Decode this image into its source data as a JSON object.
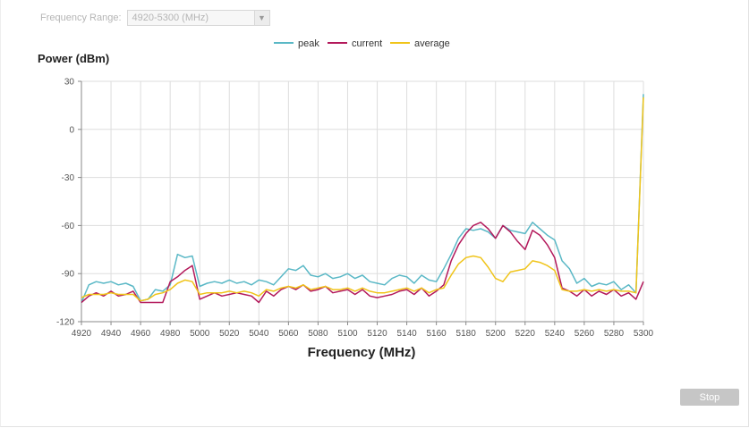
{
  "controls": {
    "range_label": "Frequency Range:",
    "range_value": "4920-5300 (MHz)",
    "stop_label": "Stop"
  },
  "colors": {
    "peak": "#5ab8c6",
    "current": "#b3195b",
    "average": "#f0c419",
    "grid": "#dddddd"
  },
  "chart_data": {
    "type": "line",
    "xlabel": "Frequency (MHz)",
    "ylabel": "Power (dBm)",
    "xlim": [
      4920,
      5300
    ],
    "ylim": [
      -120,
      30
    ],
    "x_ticks": [
      4920,
      4940,
      4960,
      4980,
      5000,
      5020,
      5040,
      5060,
      5080,
      5100,
      5120,
      5140,
      5160,
      5180,
      5200,
      5220,
      5240,
      5260,
      5280,
      5300
    ],
    "y_ticks": [
      30,
      0,
      -30,
      -60,
      -90,
      -120
    ],
    "grid": true,
    "legend_position": "top-center",
    "x": [
      4920,
      4925,
      4930,
      4935,
      4940,
      4945,
      4950,
      4955,
      4960,
      4965,
      4970,
      4975,
      4980,
      4985,
      4990,
      4995,
      5000,
      5005,
      5010,
      5015,
      5020,
      5025,
      5030,
      5035,
      5040,
      5045,
      5050,
      5055,
      5060,
      5065,
      5070,
      5075,
      5080,
      5085,
      5090,
      5095,
      5100,
      5105,
      5110,
      5115,
      5120,
      5125,
      5130,
      5135,
      5140,
      5145,
      5150,
      5155,
      5160,
      5165,
      5170,
      5175,
      5180,
      5185,
      5190,
      5195,
      5200,
      5205,
      5210,
      5215,
      5220,
      5225,
      5230,
      5235,
      5240,
      5245,
      5250,
      5255,
      5260,
      5265,
      5270,
      5275,
      5280,
      5285,
      5290,
      5295,
      5300
    ],
    "series": [
      {
        "name": "peak",
        "values": [
          -108,
          -97,
          -95,
          -96,
          -95,
          -97,
          -96,
          -98,
          -107,
          -106,
          -100,
          -101,
          -97,
          -78,
          -80,
          -79,
          -98,
          -96,
          -95,
          -96,
          -94,
          -96,
          -95,
          -97,
          -94,
          -95,
          -97,
          -92,
          -87,
          -88,
          -85,
          -91,
          -92,
          -90,
          -93,
          -92,
          -90,
          -93,
          -91,
          -95,
          -96,
          -97,
          -93,
          -91,
          -92,
          -96,
          -91,
          -94,
          -95,
          -87,
          -78,
          -68,
          -62,
          -63,
          -62,
          -64,
          -68,
          -60,
          -63,
          -64,
          -65,
          -58,
          -62,
          -66,
          -69,
          -82,
          -87,
          -96,
          -93,
          -98,
          -96,
          -97,
          -95,
          -100,
          -97,
          -102,
          22
        ]
      },
      {
        "name": "current",
        "values": [
          -108,
          -104,
          -102,
          -104,
          -101,
          -104,
          -103,
          -101,
          -108,
          -108,
          -108,
          -108,
          -95,
          -92,
          -88,
          -85,
          -106,
          -104,
          -102,
          -104,
          -103,
          -102,
          -103,
          -104,
          -108,
          -101,
          -104,
          -100,
          -98,
          -100,
          -97,
          -101,
          -100,
          -98,
          -102,
          -101,
          -100,
          -103,
          -100,
          -104,
          -105,
          -104,
          -103,
          -101,
          -100,
          -103,
          -99,
          -104,
          -101,
          -97,
          -82,
          -72,
          -65,
          -60,
          -58,
          -62,
          -68,
          -60,
          -64,
          -70,
          -75,
          -63,
          -66,
          -72,
          -80,
          -99,
          -101,
          -104,
          -100,
          -104,
          -101,
          -103,
          -100,
          -104,
          -102,
          -106,
          -95
        ]
      },
      {
        "name": "average",
        "values": [
          -105,
          -103,
          -103,
          -103,
          -102,
          -103,
          -103,
          -103,
          -107,
          -106,
          -103,
          -102,
          -100,
          -96,
          -94,
          -95,
          -103,
          -102,
          -102,
          -102,
          -101,
          -102,
          -101,
          -102,
          -104,
          -100,
          -101,
          -99,
          -98,
          -99,
          -97,
          -100,
          -99,
          -98,
          -100,
          -100,
          -99,
          -101,
          -99,
          -101,
          -102,
          -102,
          -101,
          -100,
          -99,
          -101,
          -99,
          -102,
          -100,
          -99,
          -91,
          -84,
          -80,
          -79,
          -80,
          -86,
          -93,
          -95,
          -89,
          -88,
          -87,
          -82,
          -83,
          -85,
          -88,
          -100,
          -101,
          -101,
          -100,
          -101,
          -100,
          -101,
          -100,
          -101,
          -101,
          -102,
          20
        ]
      }
    ]
  }
}
